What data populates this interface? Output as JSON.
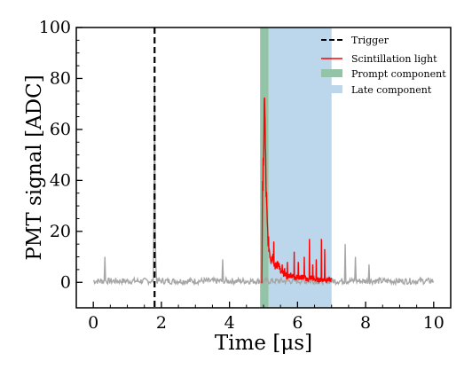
{
  "chart_data": {
    "type": "line",
    "xlabel": "Time [μs]",
    "ylabel": "PMT signal [ADC]",
    "xlim": [
      -0.5,
      10.5
    ],
    "ylim": [
      -10,
      100
    ],
    "xticks": [
      "0",
      "2",
      "4",
      "6",
      "8",
      "10"
    ],
    "yticks": [
      "0",
      "20",
      "40",
      "60",
      "80",
      "100"
    ],
    "legend_position": "top-right",
    "grid": false,
    "trigger": {
      "name": "Trigger",
      "x": 1.8,
      "color": "#000000",
      "style": "dashed"
    },
    "prompt_component": {
      "name": "Prompt component",
      "x_start": 4.9,
      "x_end": 5.15,
      "color": "#93c4a8"
    },
    "late_component": {
      "name": "Late component",
      "x_start": 5.15,
      "x_end": 7.0,
      "color": "#bcd6eb"
    },
    "background_waveform": {
      "color": "#a6a6a6",
      "baseline": 0.5,
      "noise_amplitude": 1.2,
      "x_range": [
        0,
        10
      ],
      "spikes": [
        {
          "x": 0.35,
          "y": 10
        },
        {
          "x": 1.8,
          "y": 78
        },
        {
          "x": 3.8,
          "y": 9
        },
        {
          "x": 7.4,
          "y": 15
        },
        {
          "x": 7.7,
          "y": 10
        },
        {
          "x": 8.1,
          "y": 7
        }
      ]
    },
    "scintillation_light": {
      "name": "Scintillation light",
      "color": "#ff0000",
      "x_range": [
        4.95,
        7.0
      ],
      "points": [
        [
          4.95,
          0
        ],
        [
          4.97,
          30
        ],
        [
          4.99,
          52
        ],
        [
          5.01,
          44
        ],
        [
          5.03,
          80
        ],
        [
          5.05,
          55
        ],
        [
          5.07,
          40
        ],
        [
          5.09,
          30
        ],
        [
          5.11,
          22
        ],
        [
          5.14,
          16
        ],
        [
          5.18,
          12
        ],
        [
          5.22,
          9
        ],
        [
          5.27,
          11
        ],
        [
          5.32,
          7
        ],
        [
          5.38,
          6
        ],
        [
          5.44,
          8
        ],
        [
          5.5,
          4
        ],
        [
          5.56,
          3
        ],
        [
          5.62,
          4
        ],
        [
          5.7,
          2
        ],
        [
          5.8,
          3
        ],
        [
          5.9,
          2
        ],
        [
          6.0,
          2
        ],
        [
          6.1,
          2
        ],
        [
          6.2,
          2
        ],
        [
          6.3,
          1
        ],
        [
          6.4,
          2
        ],
        [
          6.5,
          1
        ],
        [
          6.6,
          1
        ],
        [
          6.7,
          1
        ],
        [
          6.8,
          1
        ],
        [
          6.9,
          1
        ],
        [
          7.0,
          1
        ]
      ],
      "spikes": [
        {
          "x": 5.3,
          "y": 16
        },
        {
          "x": 5.42,
          "y": 8
        },
        {
          "x": 5.55,
          "y": 7
        },
        {
          "x": 5.7,
          "y": 8
        },
        {
          "x": 5.9,
          "y": 12
        },
        {
          "x": 6.02,
          "y": 8
        },
        {
          "x": 6.2,
          "y": 10
        },
        {
          "x": 6.35,
          "y": 17
        },
        {
          "x": 6.45,
          "y": 7
        },
        {
          "x": 6.55,
          "y": 9
        },
        {
          "x": 6.7,
          "y": 17
        },
        {
          "x": 6.8,
          "y": 13
        }
      ]
    }
  }
}
